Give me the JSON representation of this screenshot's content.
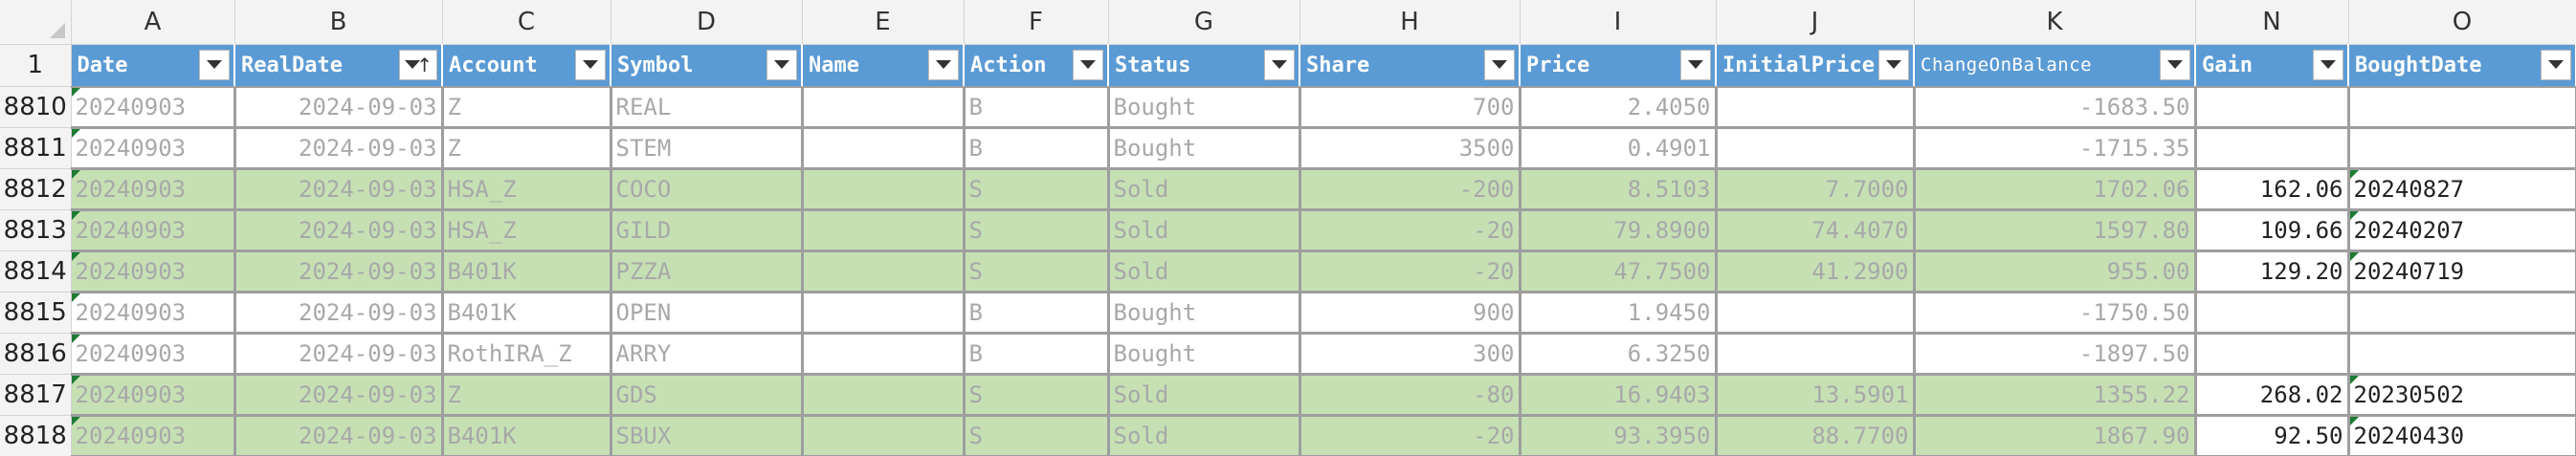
{
  "columns": [
    "A",
    "B",
    "C",
    "D",
    "E",
    "F",
    "G",
    "H",
    "I",
    "J",
    "K",
    "N",
    "O"
  ],
  "header_row_number": "1",
  "headers": [
    {
      "col": "A",
      "label": "Date"
    },
    {
      "col": "B",
      "label": "RealDate",
      "sorted": "ascending"
    },
    {
      "col": "C",
      "label": "Account"
    },
    {
      "col": "D",
      "label": "Symbol"
    },
    {
      "col": "E",
      "label": "Name"
    },
    {
      "col": "F",
      "label": "Action"
    },
    {
      "col": "G",
      "label": "Status"
    },
    {
      "col": "H",
      "label": "Share"
    },
    {
      "col": "I",
      "label": "Price"
    },
    {
      "col": "J",
      "label": "InitialPrice"
    },
    {
      "col": "K",
      "label": "ChangeOnBalance"
    },
    {
      "col": "N",
      "label": "Gain"
    },
    {
      "col": "O",
      "label": "BoughtDate"
    }
  ],
  "rows": [
    {
      "rownum": "8810",
      "band": "white",
      "date": "20240903",
      "realdate": "2024-09-03",
      "account": "Z",
      "symbol": "REAL",
      "name": "",
      "action": "B",
      "status": "Bought",
      "share": "700",
      "price": "2.4050",
      "initial": "",
      "change": "-1683.50",
      "gain": "",
      "bought": ""
    },
    {
      "rownum": "8811",
      "band": "white",
      "date": "20240903",
      "realdate": "2024-09-03",
      "account": "Z",
      "symbol": "STEM",
      "name": "",
      "action": "B",
      "status": "Bought",
      "share": "3500",
      "price": "0.4901",
      "initial": "",
      "change": "-1715.35",
      "gain": "",
      "bought": ""
    },
    {
      "rownum": "8812",
      "band": "green",
      "date": "20240903",
      "realdate": "2024-09-03",
      "account": "HSA_Z",
      "symbol": "COCO",
      "name": "",
      "action": "S",
      "status": "Sold",
      "share": "-200",
      "price": "8.5103",
      "initial": "7.7000",
      "change": "1702.06",
      "gain": "162.06",
      "bought": "20240827"
    },
    {
      "rownum": "8813",
      "band": "green",
      "date": "20240903",
      "realdate": "2024-09-03",
      "account": "HSA_Z",
      "symbol": "GILD",
      "name": "",
      "action": "S",
      "status": "Sold",
      "share": "-20",
      "price": "79.8900",
      "initial": "74.4070",
      "change": "1597.80",
      "gain": "109.66",
      "bought": "20240207"
    },
    {
      "rownum": "8814",
      "band": "green",
      "date": "20240903",
      "realdate": "2024-09-03",
      "account": "B401K",
      "symbol": "PZZA",
      "name": "",
      "action": "S",
      "status": "Sold",
      "share": "-20",
      "price": "47.7500",
      "initial": "41.2900",
      "change": "955.00",
      "gain": "129.20",
      "bought": "20240719"
    },
    {
      "rownum": "8815",
      "band": "white",
      "date": "20240903",
      "realdate": "2024-09-03",
      "account": "B401K",
      "symbol": "OPEN",
      "name": "",
      "action": "B",
      "status": "Bought",
      "share": "900",
      "price": "1.9450",
      "initial": "",
      "change": "-1750.50",
      "gain": "",
      "bought": ""
    },
    {
      "rownum": "8816",
      "band": "white",
      "date": "20240903",
      "realdate": "2024-09-03",
      "account": "RothIRA_Z",
      "symbol": "ARRY",
      "name": "",
      "action": "B",
      "status": "Bought",
      "share": "300",
      "price": "6.3250",
      "initial": "",
      "change": "-1897.50",
      "gain": "",
      "bought": ""
    },
    {
      "rownum": "8817",
      "band": "green",
      "date": "20240903",
      "realdate": "2024-09-03",
      "account": "Z",
      "symbol": "GDS",
      "name": "",
      "action": "S",
      "status": "Sold",
      "share": "-80",
      "price": "16.9403",
      "initial": "13.5901",
      "change": "1355.22",
      "gain": "268.02",
      "bought": "20230502"
    },
    {
      "rownum": "8818",
      "band": "green",
      "date": "20240903",
      "realdate": "2024-09-03",
      "account": "B401K",
      "symbol": "SBUX",
      "name": "",
      "action": "S",
      "status": "Sold",
      "share": "-20",
      "price": "93.3950",
      "initial": "88.7700",
      "change": "1867.90",
      "gain": "92.50",
      "bought": "20240430"
    }
  ],
  "colors": {
    "header_fill": "#5b9bd5",
    "sold_row_fill": "#c6e0b4",
    "bought_row_fill": "#ffffff",
    "grid_line": "#9e9e9e",
    "error_indicator": "#1e7b34"
  },
  "icons": {
    "filter": "chevron-down-icon",
    "sort": "sort-ascending-icon",
    "select_all": "select-all-triangle-icon",
    "cell_flag": "error-indicator-icon"
  }
}
